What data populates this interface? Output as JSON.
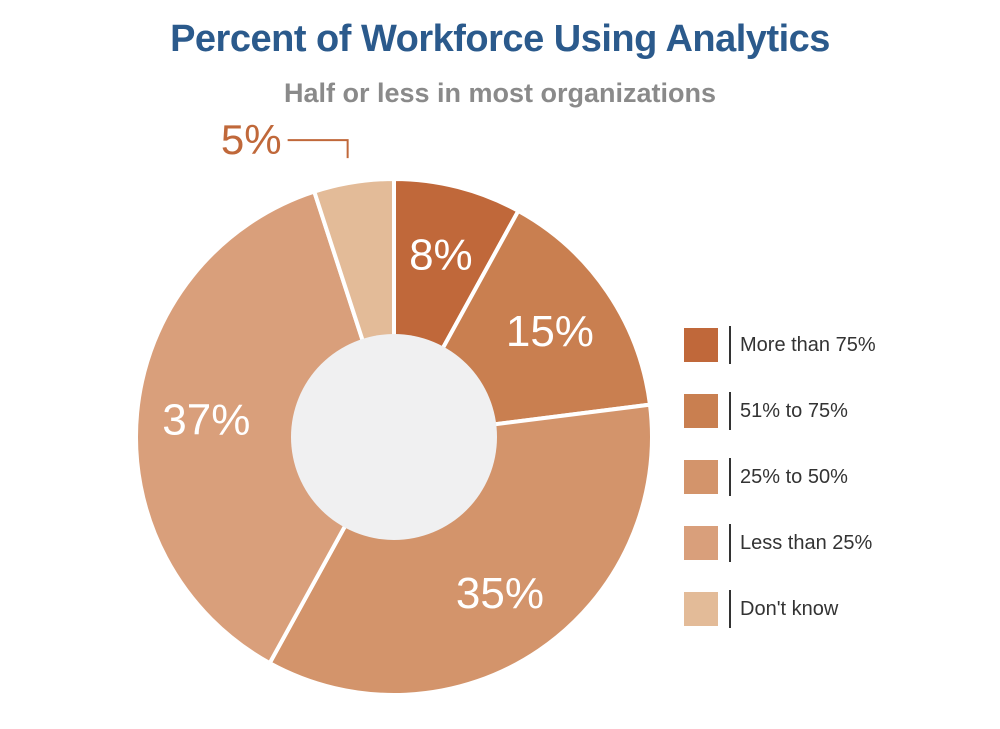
{
  "title": "Percent of Workforce Using Analytics",
  "subtitle": "Half or less in most organizations",
  "chart_data": {
    "type": "pie",
    "title": "Percent of Workforce Using Analytics",
    "subtitle": "Half or less in most organizations",
    "donut": true,
    "categories": [
      "More than 75%",
      "51% to 75%",
      "25% to 50%",
      "Less than 25%",
      "Don't know"
    ],
    "values": [
      8,
      15,
      35,
      37,
      5
    ],
    "labels": [
      "8%",
      "15%",
      "35%",
      "37%",
      "5%"
    ],
    "colors": [
      "#c0683a",
      "#c97f50",
      "#d3946b",
      "#d99f7b",
      "#e3bb98"
    ],
    "legend_position": "right"
  },
  "colors": {
    "title": "#2b5a8c",
    "subtitle": "#8a8a8a",
    "callout": "#c0683a",
    "donut_hole": "#f0f0f1"
  }
}
